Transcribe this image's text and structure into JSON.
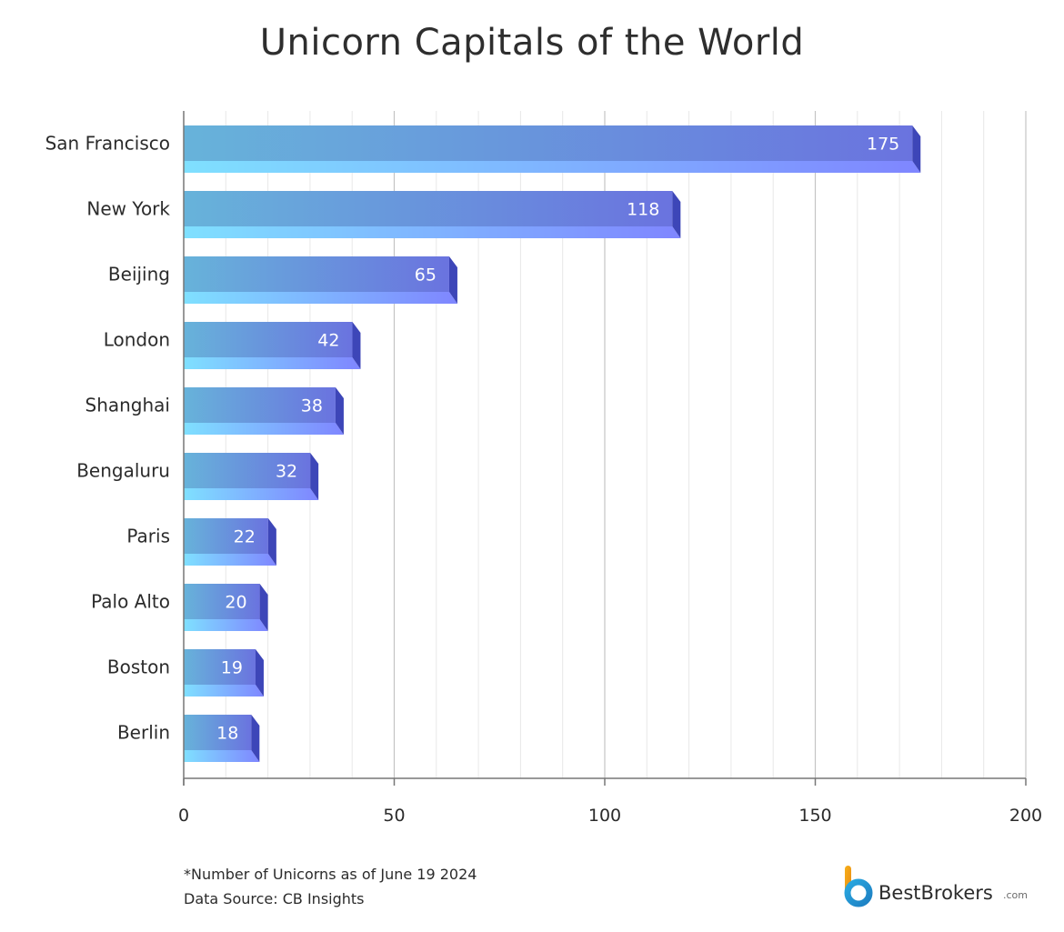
{
  "chart_data": {
    "type": "bar",
    "orientation": "horizontal",
    "title": "Unicorn Capitals of the World",
    "categories": [
      "San Francisco",
      "New York",
      "Beijing",
      "London",
      "Shanghai",
      "Bengaluru",
      "Paris",
      "Palo Alto",
      "Boston",
      "Berlin"
    ],
    "values": [
      175,
      118,
      65,
      42,
      38,
      32,
      22,
      20,
      19,
      18
    ],
    "xlim": [
      0,
      200
    ],
    "xticks": [
      0,
      50,
      100,
      150,
      200
    ],
    "grid": true,
    "xlabel": "",
    "ylabel": ""
  },
  "footnote": {
    "line1": "*Number of Unicorns as of June 19 2024",
    "line2": "Data Source: CB Insights"
  },
  "brand": {
    "name": "BestBrokers",
    "suffix": ".com"
  },
  "colors": {
    "bar_start": "#67b3da",
    "bar_end": "#6a73df",
    "bar_bottom_start": "#7fe0ff",
    "bar_bottom_end": "#7f86ff",
    "bar_side": "#3d46b8",
    "grid": "#e6e6e6",
    "axis": "#8a8a8a"
  }
}
